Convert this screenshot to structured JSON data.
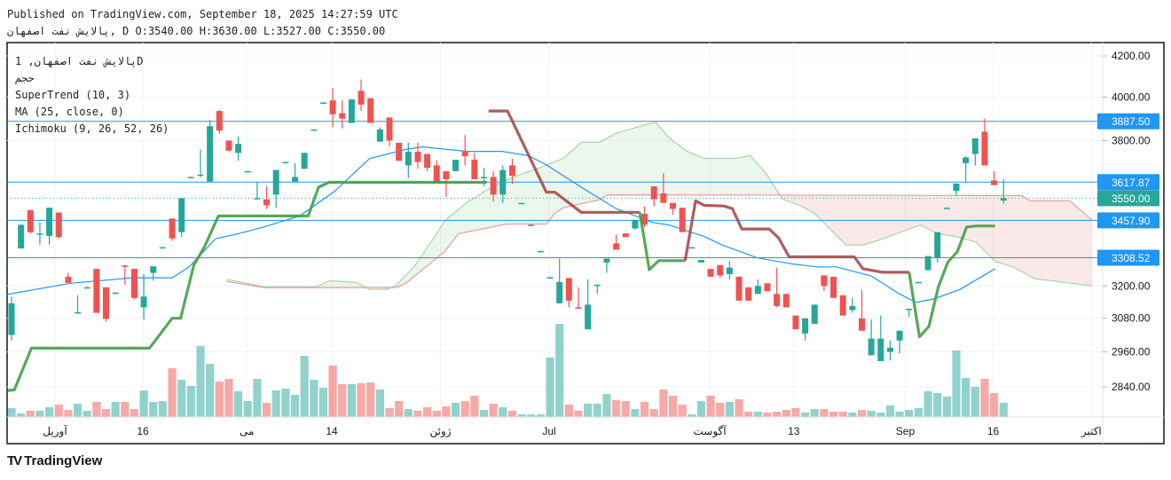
{
  "header": {
    "published": "Published on TradingView.com, September 18, 2025 14:27:59 UTC",
    "ohlc": "پالایش نفت اصفهان, D O:3540.00 H:3630.00 L:3527.00 C:3550.00"
  },
  "legend": {
    "symbol": "پالایش نفت اصفهان, 1D",
    "volume": "حجم",
    "supertrend": "SuperTrend (10, 3)",
    "ma": "MA (25, close, 0)",
    "ichimoku": "Ichimoku (9, 26, 52, 26)"
  },
  "branding": {
    "logo": "TradingView"
  },
  "colors": {
    "up": "#26a69a",
    "down": "#ef5350",
    "ma": "#2196f3",
    "st_up": "#43a047",
    "st_down": "#a64b4b",
    "kumo_up": "#a5d6a7",
    "kumo_down": "#ef9a9a",
    "label": "#2196f3",
    "last": "#26a69a"
  },
  "chart_data": {
    "type": "candlestick",
    "scale": "log",
    "ylim": [
      2820,
      4260
    ],
    "y_ticks": [
      "4200.00",
      "4000.00",
      "3800.00",
      "3200.00",
      "3080.00",
      "2960.00",
      "2840.00"
    ],
    "y_tick_values": [
      4200,
      4000,
      3800,
      3200,
      3080,
      2960,
      2840
    ],
    "x_ticks": [
      {
        "label": "آوریل",
        "at": 4.6
      },
      {
        "label": "16",
        "at": 13.9
      },
      {
        "label": "می",
        "at": 24.9
      },
      {
        "label": "14",
        "at": 33.9
      },
      {
        "label": "ژوئن",
        "at": 45.4
      },
      {
        "label": "Jul",
        "at": 56.9
      },
      {
        "label": "آگوست",
        "at": 73.9
      },
      {
        "label": "13",
        "at": 82.8
      },
      {
        "label": "Sep",
        "at": 94.6
      },
      {
        "label": "16",
        "at": 103.9
      },
      {
        "label": "اکتبر",
        "at": 114.3
      }
    ],
    "price_lines": [
      {
        "label": "3887.50",
        "value": 3887.5,
        "kind": "level"
      },
      {
        "label": "3617.87",
        "value": 3617.87,
        "kind": "level"
      },
      {
        "label": "3550.00",
        "value": 3550,
        "kind": "last"
      },
      {
        "label": "3457.90",
        "value": 3457.9,
        "kind": "level"
      },
      {
        "label": "3308.52",
        "value": 3308.52,
        "kind": "level"
      }
    ],
    "candles": [
      [
        3020,
        3160,
        3000,
        3135
      ],
      [
        3345,
        3440,
        3345,
        3440
      ],
      [
        3500,
        3500,
        3405,
        3410
      ],
      [
        3400,
        3450,
        3360,
        3405
      ],
      [
        3395,
        3510,
        3360,
        3510
      ],
      [
        3490,
        3490,
        3385,
        3390
      ],
      [
        3235,
        3250,
        3212,
        3212
      ],
      [
        3100,
        3165,
        3100,
        3102
      ],
      [
        3195,
        3197,
        3193,
        3195
      ],
      [
        3265,
        3265,
        3100,
        3100
      ],
      [
        3195,
        3195,
        3068,
        3078
      ],
      [
        3175,
        3176,
        3174,
        3175
      ],
      [
        3278,
        3280,
        3205,
        3274
      ],
      [
        3265,
        3265,
        3150,
        3155
      ],
      [
        3120,
        3245,
        3075,
        3160
      ],
      [
        3250,
        3275,
        3220,
        3275
      ],
      [
        3350,
        3351,
        3349,
        3350
      ],
      [
        3465,
        3465,
        3375,
        3385
      ],
      [
        3410,
        3550,
        3390,
        3550
      ],
      [
        3640,
        3641,
        3639,
        3640
      ],
      [
        3645,
        3760,
        3640,
        3650
      ],
      [
        3620,
        3895,
        3620,
        3865
      ],
      [
        3935,
        3940,
        3830,
        3845
      ],
      [
        3800,
        3800,
        3750,
        3755
      ],
      [
        3745,
        3820,
        3710,
        3785
      ],
      [
        3665,
        3666,
        3664,
        3665
      ],
      [
        3548,
        3617,
        3545,
        3550
      ],
      [
        3545,
        3600,
        3505,
        3520
      ],
      [
        3565,
        3670,
        3510,
        3670
      ],
      [
        3700,
        3706,
        3699,
        3705
      ],
      [
        3620,
        3700,
        3618,
        3640
      ],
      [
        3675,
        3745,
        3675,
        3745
      ],
      [
        3850,
        3851,
        3849,
        3850
      ],
      [
        3975,
        3976,
        3974,
        3975
      ],
      [
        3985,
        4045,
        3860,
        3920
      ],
      [
        3925,
        3985,
        3855,
        3900
      ],
      [
        3880,
        3990,
        3880,
        3990
      ],
      [
        4030,
        4085,
        3935,
        3965
      ],
      [
        3995,
        3995,
        3880,
        3880
      ],
      [
        3795,
        3860,
        3795,
        3850
      ],
      [
        3905,
        3905,
        3775,
        3800
      ],
      [
        3790,
        3790,
        3710,
        3710
      ],
      [
        3690,
        3790,
        3635,
        3750
      ],
      [
        3750,
        3790,
        3675,
        3705
      ],
      [
        3740,
        3740,
        3665,
        3680
      ],
      [
        3690,
        3712,
        3620,
        3620
      ],
      [
        3665,
        3665,
        3555,
        3630
      ],
      [
        3665,
        3715,
        3665,
        3715
      ],
      [
        3750,
        3825,
        3690,
        3730
      ],
      [
        3715,
        3745,
        3630,
        3630
      ],
      [
        3635,
        3680,
        3600,
        3640
      ],
      [
        3640,
        3665,
        3535,
        3565
      ],
      [
        3565,
        3690,
        3530,
        3670
      ],
      [
        3690,
        3720,
        3610,
        3645
      ],
      [
        3530,
        3531,
        3529,
        3530
      ],
      [
        3440,
        3441,
        3439,
        3440
      ],
      [
        3335,
        3336,
        3334,
        3335
      ],
      [
        3233,
        3234,
        3232,
        3233
      ],
      [
        3135,
        3305,
        3135,
        3215
      ],
      [
        3230,
        3230,
        3120,
        3145
      ],
      [
        3120,
        3195,
        3115,
        3115
      ],
      [
        3040,
        3225,
        3040,
        3130
      ],
      [
        3200,
        3205,
        3170,
        3205
      ],
      [
        3290,
        3305,
        3250,
        3305
      ],
      [
        3365,
        3400,
        3340,
        3340
      ],
      [
        3405,
        3405,
        3390,
        3390
      ],
      [
        3425,
        3460,
        3420,
        3460
      ],
      [
        3485,
        3515,
        3430,
        3440
      ],
      [
        3600,
        3600,
        3515,
        3545
      ],
      [
        3570,
        3655,
        3530,
        3530
      ],
      [
        3530,
        3530,
        3480,
        3505
      ],
      [
        3510,
        3510,
        3410,
        3410
      ],
      [
        3350,
        3351,
        3349,
        3350
      ],
      [
        3290,
        3300,
        3290,
        3300
      ],
      [
        3265,
        3265,
        3235,
        3235
      ],
      [
        3280,
        3280,
        3230,
        3240
      ],
      [
        3245,
        3295,
        3225,
        3270
      ],
      [
        3235,
        3235,
        3145,
        3145
      ],
      [
        3195,
        3195,
        3145,
        3145
      ],
      [
        3170,
        3225,
        3170,
        3200
      ],
      [
        3210,
        3210,
        3180,
        3180
      ],
      [
        3170,
        3270,
        3120,
        3125
      ],
      [
        3170,
        3170,
        3120,
        3120
      ],
      [
        3090,
        3090,
        3040,
        3040
      ],
      [
        3025,
        3080,
        3000,
        3080
      ],
      [
        3060,
        3130,
        3060,
        3130
      ],
      [
        3240,
        3240,
        3180,
        3200
      ],
      [
        3235,
        3235,
        3155,
        3155
      ],
      [
        3165,
        3165,
        3090,
        3090
      ],
      [
        3110,
        3155,
        3100,
        3125
      ],
      [
        3080,
        3185,
        3035,
        3035
      ],
      [
        2948,
        3075,
        2948,
        3007
      ],
      [
        2928,
        3090,
        2928,
        3007
      ],
      [
        2960,
        3000,
        2930,
        2975
      ],
      [
        3000,
        3035,
        2955,
        3035
      ],
      [
        3110,
        3115,
        3085,
        3115
      ],
      [
        3215,
        3216,
        3214,
        3215
      ],
      [
        3260,
        3315,
        3260,
        3315
      ],
      [
        3310,
        3410,
        3290,
        3410
      ],
      [
        3510,
        3511,
        3509,
        3510
      ],
      [
        3580,
        3612,
        3560,
        3612
      ],
      [
        3700,
        3730,
        3615,
        3725
      ],
      [
        3740,
        3810,
        3690,
        3810
      ],
      [
        3840,
        3900,
        3690,
        3690
      ],
      [
        3625,
        3665,
        3605,
        3605
      ],
      [
        3540,
        3630,
        3527,
        3550
      ]
    ],
    "volume": [
      10,
      4,
      7,
      7,
      11,
      14,
      8,
      15,
      7,
      17,
      9,
      17,
      17,
      9,
      30,
      17,
      18,
      55,
      42,
      35,
      80,
      60,
      40,
      43,
      29,
      18,
      43,
      16,
      30,
      32,
      25,
      69,
      42,
      33,
      58,
      37,
      37,
      38,
      39,
      31,
      10,
      18,
      9,
      7,
      11,
      7,
      12,
      16,
      18,
      24,
      8,
      15,
      11,
      7,
      3,
      3,
      3,
      67,
      105,
      14,
      7,
      15,
      15,
      26,
      19,
      18,
      9,
      17,
      9,
      31,
      24,
      14,
      3,
      18,
      24,
      16,
      17,
      20,
      6,
      6,
      5,
      6,
      8,
      10,
      5,
      9,
      9,
      6,
      6,
      5,
      8,
      7,
      5,
      13,
      6,
      8,
      10,
      29,
      27,
      23,
      75,
      44,
      34,
      43,
      27,
      16
    ],
    "ma": [
      [
        -0.5,
        3168
      ],
      [
        6.2,
        3210
      ],
      [
        12.8,
        3231
      ],
      [
        17,
        3231
      ],
      [
        18.8,
        3273
      ],
      [
        21.6,
        3384
      ],
      [
        24,
        3404
      ],
      [
        26.7,
        3431
      ],
      [
        30.5,
        3476
      ],
      [
        34.2,
        3579
      ],
      [
        37.9,
        3720
      ],
      [
        41.7,
        3760
      ],
      [
        43.5,
        3772
      ],
      [
        48.2,
        3752
      ],
      [
        51.9,
        3752
      ],
      [
        54.7,
        3733
      ],
      [
        56.6,
        3693
      ],
      [
        60.3,
        3596
      ],
      [
        64,
        3506
      ],
      [
        67.8,
        3450
      ],
      [
        69.6,
        3439
      ],
      [
        73.3,
        3393
      ],
      [
        75.2,
        3359
      ],
      [
        78.9,
        3308
      ],
      [
        82.7,
        3284
      ],
      [
        85.4,
        3273
      ],
      [
        87.3,
        3273
      ],
      [
        91,
        3238
      ],
      [
        93.9,
        3172
      ],
      [
        95.7,
        3138
      ],
      [
        97.6,
        3151
      ],
      [
        100.4,
        3187
      ],
      [
        104.1,
        3266
      ]
    ],
    "supertrend": [
      {
        "trend": "up",
        "points": [
          [
            -0.4,
            2828
          ],
          [
            0.3,
            2830
          ],
          [
            2.1,
            2973
          ],
          [
            14.6,
            2973
          ],
          [
            17,
            3080
          ],
          [
            17.9,
            3080
          ],
          [
            19.3,
            3280
          ],
          [
            20.4,
            3350
          ],
          [
            21.9,
            3476
          ],
          [
            31.4,
            3476
          ],
          [
            32.5,
            3596
          ],
          [
            33.6,
            3617
          ],
          [
            50.3,
            3617
          ]
        ]
      },
      {
        "trend": "down",
        "points": [
          [
            50.5,
            3935
          ],
          [
            52.5,
            3935
          ],
          [
            56.6,
            3575
          ],
          [
            57.5,
            3575
          ],
          [
            60.3,
            3491
          ],
          [
            66.5,
            3491
          ]
        ]
      },
      {
        "trend": "up",
        "points": [
          [
            66.5,
            3491
          ],
          [
            67.5,
            3262
          ],
          [
            68.5,
            3297
          ],
          [
            71.3,
            3297
          ]
        ]
      },
      {
        "trend": "down",
        "points": [
          [
            71.3,
            3297
          ],
          [
            72.4,
            3539
          ],
          [
            73.3,
            3520
          ],
          [
            75.4,
            3517
          ],
          [
            76.3,
            3506
          ],
          [
            77.3,
            3423
          ],
          [
            80.2,
            3423
          ],
          [
            81.2,
            3386
          ],
          [
            82.3,
            3312
          ],
          [
            89.2,
            3312
          ],
          [
            90.1,
            3266
          ],
          [
            92.2,
            3252
          ],
          [
            95,
            3252
          ]
        ]
      },
      {
        "trend": "up",
        "points": [
          [
            95,
            3252
          ],
          [
            96.1,
            3013
          ],
          [
            97.1,
            3051
          ],
          [
            98.1,
            3197
          ],
          [
            99.1,
            3291
          ],
          [
            100.1,
            3332
          ],
          [
            101.1,
            3431
          ],
          [
            102.1,
            3435
          ],
          [
            104.1,
            3435
          ]
        ]
      }
    ],
    "ichimoku": {
      "span_a": [
        [
          22.8,
          3225
        ],
        [
          26.7,
          3197
        ],
        [
          32.3,
          3197
        ],
        [
          33.7,
          3220
        ],
        [
          36.5,
          3213
        ],
        [
          37.9,
          3187
        ],
        [
          39.8,
          3187
        ],
        [
          40.7,
          3203
        ],
        [
          42.6,
          3273
        ],
        [
          44.5,
          3376
        ],
        [
          45.9,
          3458
        ],
        [
          48.2,
          3532
        ],
        [
          50.5,
          3589
        ],
        [
          52.8,
          3635
        ],
        [
          56.1,
          3683
        ],
        [
          58.4,
          3721
        ],
        [
          60.3,
          3792
        ],
        [
          62.2,
          3792
        ],
        [
          64,
          3833
        ],
        [
          67.3,
          3875
        ],
        [
          68.2,
          3883
        ],
        [
          69.6,
          3812
        ],
        [
          71.5,
          3752
        ],
        [
          73.3,
          3721
        ],
        [
          76.6,
          3721
        ],
        [
          78.2,
          3733
        ],
        [
          79.9,
          3653
        ],
        [
          81.6,
          3546
        ],
        [
          83.6,
          3517
        ],
        [
          85,
          3487
        ],
        [
          88.3,
          3359
        ],
        [
          90.1,
          3359
        ],
        [
          92,
          3380
        ],
        [
          96.2,
          3439
        ],
        [
          98,
          3404
        ],
        [
          99.9,
          3393
        ],
        [
          102.1,
          3370
        ],
        [
          104.1,
          3294
        ],
        [
          106,
          3273
        ],
        [
          108.3,
          3228
        ],
        [
          114.4,
          3200
        ]
      ],
      "span_b": [
        [
          22.8,
          3217
        ],
        [
          26.7,
          3194
        ],
        [
          40.7,
          3194
        ],
        [
          41.7,
          3210
        ],
        [
          44.1,
          3280
        ],
        [
          45.9,
          3335
        ],
        [
          47.3,
          3404
        ],
        [
          52.4,
          3443
        ],
        [
          56.6,
          3443
        ],
        [
          57.5,
          3487
        ],
        [
          58.4,
          3510
        ],
        [
          62.2,
          3543
        ],
        [
          63.1,
          3564
        ],
        [
          106.9,
          3561
        ],
        [
          107.8,
          3539
        ],
        [
          112,
          3539
        ],
        [
          114.4,
          3458
        ]
      ],
      "crossover_at": 81
    }
  }
}
